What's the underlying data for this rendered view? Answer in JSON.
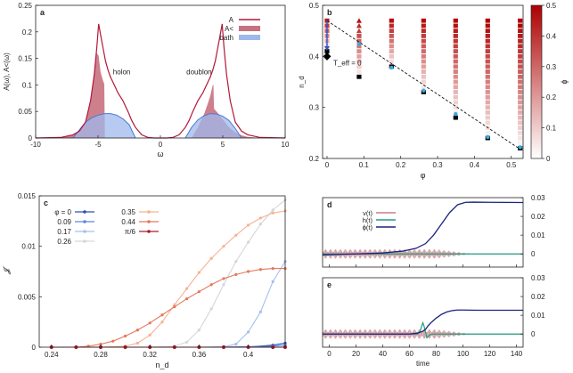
{
  "chart_data": [
    {
      "panel": "a",
      "type": "line",
      "xlabel": "ω",
      "ylabel": "A(ω), A<(ω)",
      "xlim": [
        -10,
        10
      ],
      "ylim": [
        0,
        0.25
      ],
      "xticks": [
        "-10",
        "-5",
        "0",
        "5",
        "10"
      ],
      "yticks": [
        "0",
        "0.05",
        "0.1",
        "0.15",
        "0.2",
        "0.25"
      ],
      "legend": [
        "A",
        "A<",
        "bath"
      ],
      "legend_position": "top-right",
      "annotations": [
        "holon",
        "doublon"
      ],
      "colors": {
        "A": "#b2173b",
        "A_less": "#c8727f",
        "bath": "#9fb8ec",
        "bath_line": "#4a78d8"
      },
      "series": [
        {
          "name": "A",
          "x": [
            -10,
            -8,
            -7,
            -6.5,
            -6,
            -5.6,
            -5.3,
            -5.1,
            -4.95,
            -4.8,
            -4.6,
            -4.4,
            -4.2,
            -4,
            -3.7,
            -3.4,
            -3,
            -2.6,
            -2.3,
            -2,
            -1.5,
            -1,
            -0.5,
            0,
            0.5,
            1,
            1.5,
            2,
            2.3,
            2.6,
            3,
            3.4,
            3.7,
            4,
            4.2,
            4.4,
            4.6,
            4.8,
            4.95,
            5.1,
            5.3,
            5.6,
            6,
            6.5,
            7,
            8,
            10
          ],
          "y": [
            0,
            0.001,
            0.006,
            0.013,
            0.03,
            0.07,
            0.12,
            0.17,
            0.215,
            0.195,
            0.17,
            0.145,
            0.128,
            0.115,
            0.1,
            0.085,
            0.07,
            0.05,
            0.033,
            0.02,
            0.006,
            0.001,
            0,
            0,
            0,
            0.001,
            0.006,
            0.02,
            0.033,
            0.05,
            0.07,
            0.085,
            0.1,
            0.115,
            0.128,
            0.145,
            0.17,
            0.195,
            0.215,
            0.17,
            0.12,
            0.07,
            0.03,
            0.013,
            0.006,
            0.001,
            0
          ]
        },
        {
          "name": "A<",
          "x": [
            -8,
            -7,
            -6.5,
            -6,
            -5.6,
            -5.3,
            -5.1,
            -4.95,
            -4.8,
            -4.6,
            -4.5,
            -4.45,
            2.5,
            3,
            3.5,
            3.8,
            4,
            4.15,
            4.2,
            4.25,
            4.3,
            4.5,
            5,
            5.5,
            6,
            6.5,
            7,
            8
          ],
          "y": [
            0.001,
            0.006,
            0.013,
            0.03,
            0.07,
            0.12,
            0.16,
            0.155,
            0.125,
            0.108,
            0.102,
            0,
            0,
            0.02,
            0.045,
            0.065,
            0.08,
            0.095,
            0.1,
            0.1,
            0.055,
            0.05,
            0.035,
            0.02,
            0.011,
            0.005,
            0.002,
            0
          ]
        },
        {
          "name": "bath",
          "x": [
            -7,
            -6.5,
            -6,
            -5.5,
            -5,
            -4.5,
            -4,
            -3.5,
            -3,
            -2.5,
            -2,
            2,
            2.5,
            3,
            3.5,
            4,
            4.5,
            5,
            5.5,
            6,
            6.5
          ],
          "y": [
            0,
            0.015,
            0.03,
            0.038,
            0.043,
            0.046,
            0.046,
            0.043,
            0.036,
            0.025,
            0,
            0,
            0.02,
            0.034,
            0.042,
            0.046,
            0.045,
            0.041,
            0.033,
            0.018,
            0
          ]
        }
      ]
    },
    {
      "panel": "b",
      "type": "heatmap",
      "xlabel": "φ",
      "ylabel": "n_d",
      "xlim": [
        0,
        0.52
      ],
      "ylim": [
        0.2,
        0.5
      ],
      "xticks": [
        "0",
        "0.1",
        "0.2",
        "0.3",
        "0.4",
        "0.5"
      ],
      "yticks": [
        "0.2",
        "0.3",
        "0.4",
        "0.5"
      ],
      "colorbar_label": "ϕ",
      "colorbar_ticks": [
        "0",
        "0.1",
        "0.2",
        "0.3",
        "0.4",
        "0.5"
      ],
      "colorbar_range": [
        0,
        0.5
      ],
      "annotation": "T_eff = 0",
      "columns_phi": [
        0,
        0.087,
        0.175,
        0.262,
        0.349,
        0.436,
        0.524
      ],
      "nd_min_by_column": [
        0.41,
        0.36,
        0.38,
        0.33,
        0.28,
        0.24,
        0.22
      ],
      "nd_max": 0.47,
      "boundary_line": {
        "x": [
          0,
          0.52
        ],
        "y": [
          0.47,
          0.22
        ]
      },
      "blue_points": {
        "phi": [
          0.087,
          0.175,
          0.262,
          0.349,
          0.436,
          0.524
        ],
        "nd": [
          0.424,
          0.378,
          0.333,
          0.287,
          0.242,
          0.222
        ]
      },
      "diamond": {
        "phi": 0,
        "nd": 0.4
      }
    },
    {
      "panel": "c",
      "type": "line",
      "xlabel": "n_d",
      "ylabel": "𝓙",
      "xlim": [
        0.23,
        0.43
      ],
      "ylim": [
        0,
        0.015
      ],
      "xticks": [
        "0.24",
        "0.28",
        "0.32",
        "0.36",
        "0.4"
      ],
      "yticks": [
        "0",
        "0.005",
        "0.01",
        "0.015"
      ],
      "legend_position": "top-left",
      "series": [
        {
          "name": "φ = 0",
          "color": "#2a4fb5",
          "x": [
            0.24,
            0.26,
            0.28,
            0.3,
            0.32,
            0.34,
            0.36,
            0.38,
            0.4,
            0.42,
            0.43
          ],
          "y": [
            0,
            0,
            0,
            0,
            0,
            0,
            0,
            0,
            2e-05,
            0.0002,
            0.0004
          ]
        },
        {
          "name": "0.09",
          "color": "#5a88dd",
          "x": [
            0.24,
            0.26,
            0.28,
            0.3,
            0.32,
            0.34,
            0.36,
            0.38,
            0.4,
            0.42,
            0.43
          ],
          "y": [
            0,
            0,
            0,
            0,
            0,
            0,
            0,
            0,
            5e-05,
            0.0001,
            0.0002
          ]
        },
        {
          "name": "0.17",
          "color": "#a6c0ec",
          "x": [
            0.24,
            0.26,
            0.28,
            0.3,
            0.32,
            0.34,
            0.36,
            0.38,
            0.39,
            0.4,
            0.41,
            0.42,
            0.43
          ],
          "y": [
            0,
            0,
            0,
            0,
            0,
            0,
            0,
            5e-05,
            0.0003,
            0.0015,
            0.0035,
            0.0065,
            0.0085
          ]
        },
        {
          "name": "0.26",
          "color": "#d4d6dc",
          "x": [
            0.24,
            0.26,
            0.28,
            0.3,
            0.32,
            0.34,
            0.35,
            0.36,
            0.37,
            0.38,
            0.39,
            0.4,
            0.41,
            0.42,
            0.43
          ],
          "y": [
            0,
            0,
            0,
            0,
            0,
            0.0001,
            0.0005,
            0.0017,
            0.0038,
            0.0062,
            0.0085,
            0.0104,
            0.0122,
            0.0136,
            0.0146
          ]
        },
        {
          "name": "0.35",
          "color": "#f4b494",
          "x": [
            0.24,
            0.26,
            0.28,
            0.3,
            0.31,
            0.32,
            0.33,
            0.34,
            0.35,
            0.36,
            0.37,
            0.38,
            0.39,
            0.4,
            0.41,
            0.42,
            0.43
          ],
          "y": [
            0,
            0,
            0,
            0.0001,
            0.0004,
            0.0012,
            0.0025,
            0.0042,
            0.0058,
            0.0074,
            0.0088,
            0.01,
            0.0111,
            0.0121,
            0.0128,
            0.0133,
            0.0135
          ]
        },
        {
          "name": "0.44",
          "color": "#e4785c",
          "x": [
            0.24,
            0.26,
            0.27,
            0.28,
            0.29,
            0.3,
            0.31,
            0.32,
            0.33,
            0.34,
            0.35,
            0.36,
            0.37,
            0.38,
            0.39,
            0.4,
            0.41,
            0.42,
            0.43
          ],
          "y": [
            0,
            0,
            0.0001,
            0.0003,
            0.0006,
            0.0011,
            0.0017,
            0.0024,
            0.0032,
            0.004,
            0.0048,
            0.0055,
            0.0062,
            0.0068,
            0.0072,
            0.0075,
            0.0077,
            0.0078,
            0.0078
          ]
        },
        {
          "name": "π/6",
          "color": "#b2182b",
          "x": [
            0.24,
            0.26,
            0.28,
            0.3,
            0.32,
            0.34,
            0.36,
            0.38,
            0.4,
            0.42,
            0.43
          ],
          "y": [
            0,
            0,
            0,
            0,
            0,
            0,
            0,
            0,
            0,
            0,
            0
          ]
        }
      ]
    },
    {
      "panel": "d",
      "type": "line",
      "xlabel": "",
      "ylabel": "",
      "xlim": [
        -5,
        145
      ],
      "ylim": [
        -0.007,
        0.03
      ],
      "yticks": [
        "0",
        "0.01",
        "0.02",
        "0.03"
      ],
      "legend": [
        "v(t)",
        "h(t)",
        "ϕ(t)"
      ],
      "legend_position": "top-left",
      "colors": {
        "v": "#c97f86",
        "h": "#1f9e80",
        "phi": "#1a237e"
      },
      "series": [
        {
          "name": "ϕ(t)",
          "x": [
            -5,
            20,
            40,
            55,
            65,
            72,
            78,
            84,
            90,
            96,
            102,
            108,
            120,
            145
          ],
          "y": [
            -0.0005,
            0,
            0.0005,
            0.0015,
            0.003,
            0.0055,
            0.01,
            0.016,
            0.022,
            0.0262,
            0.0275,
            0.0276,
            0.0275,
            0.0274
          ]
        },
        {
          "name": "h(t)",
          "x": [
            -5,
            145
          ],
          "y": [
            0,
            0
          ]
        }
      ],
      "oscillation": {
        "series": "v(t)",
        "t_end": 108,
        "amplitude": 0.0025
      }
    },
    {
      "panel": "e",
      "type": "line",
      "xlabel": "time",
      "ylabel": "",
      "xlim": [
        -5,
        145
      ],
      "ylim": [
        -0.007,
        0.03
      ],
      "xticks": [
        "0",
        "20",
        "40",
        "60",
        "80",
        "100",
        "120",
        "140"
      ],
      "yticks": [
        "0",
        "0.01",
        "0.02",
        "0.03"
      ],
      "series": [
        {
          "name": "ϕ(t)",
          "x": [
            -5,
            60,
            66,
            70,
            72,
            74,
            76,
            80,
            84,
            88,
            92,
            96,
            100,
            110,
            145
          ],
          "y": [
            0,
            0,
            0.0005,
            0.0015,
            0.0025,
            0.0045,
            0.006,
            0.0085,
            0.0105,
            0.0118,
            0.0125,
            0.0128,
            0.0128,
            0.0127,
            0.0127
          ]
        },
        {
          "name": "h(t)",
          "x": [
            -5,
            66,
            68,
            69,
            70,
            71,
            72,
            73,
            75,
            77,
            80,
            145
          ],
          "y": [
            0,
            0,
            0.0015,
            0.004,
            0.006,
            0.004,
            0.001,
            -0.002,
            -0.0005,
            0,
            0,
            0
          ]
        }
      ],
      "oscillation": {
        "series": "v(t)",
        "t_end": 108,
        "amplitude": 0.0025
      }
    }
  ]
}
